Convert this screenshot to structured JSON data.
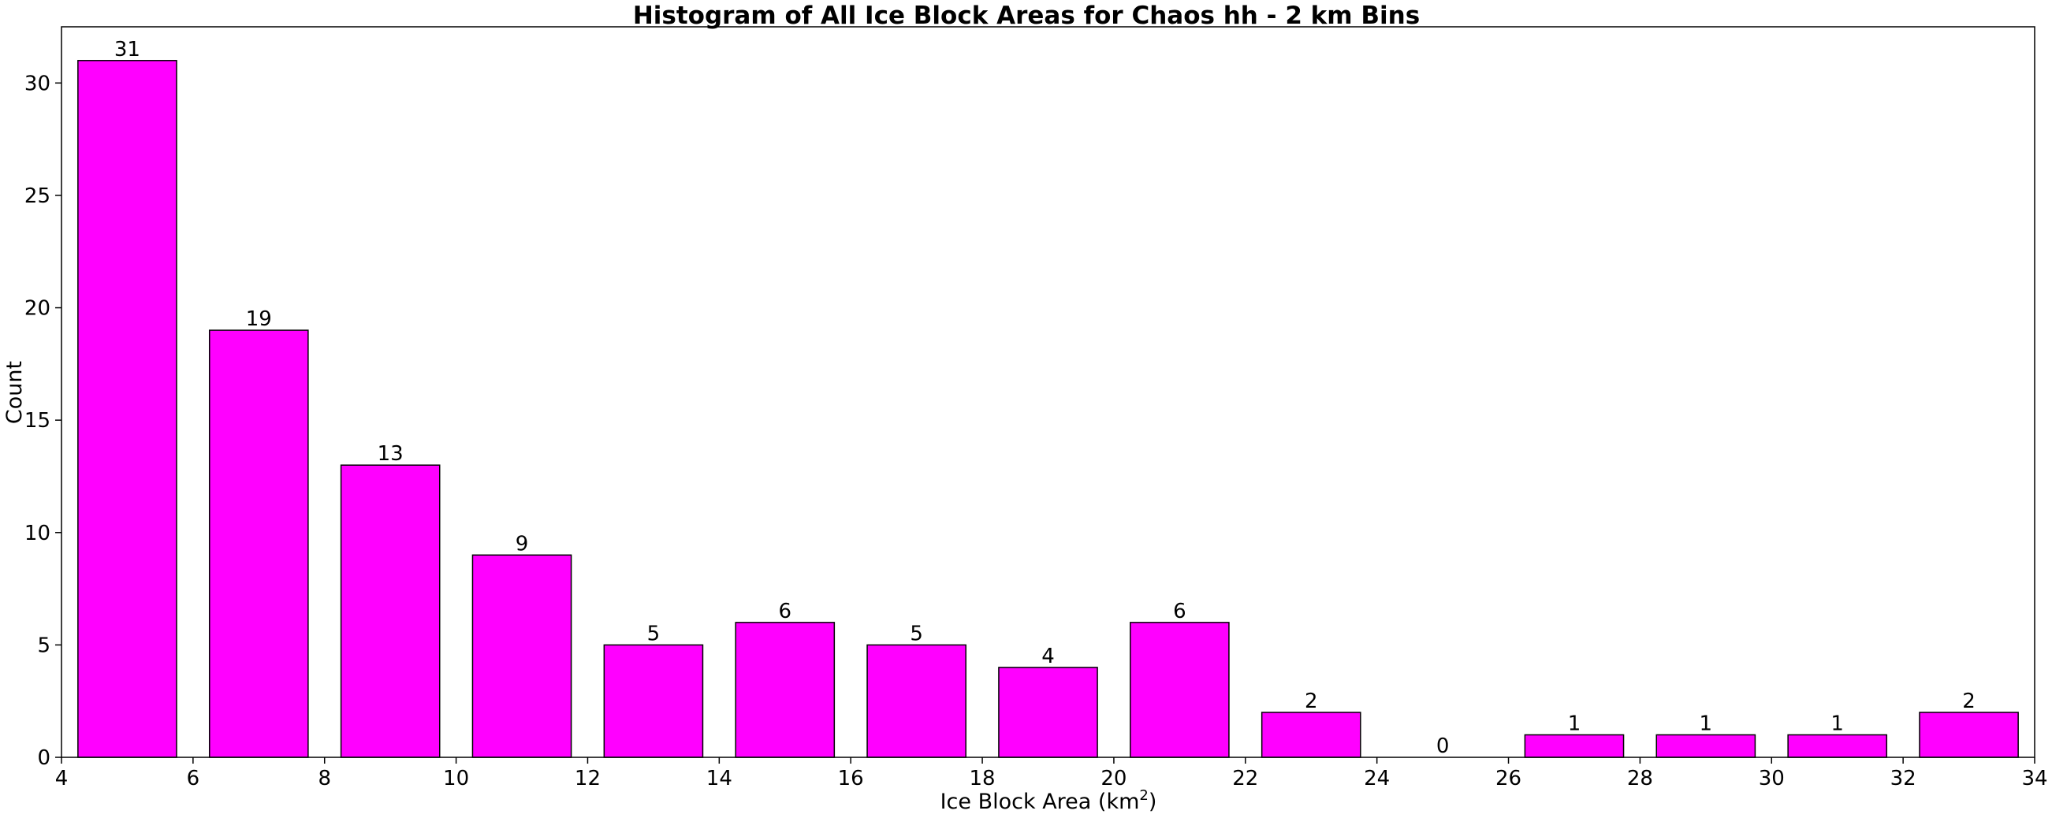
{
  "chart_data": {
    "type": "bar",
    "title": "Histogram of All Ice Block Areas for Chaos hh - 2 km Bins",
    "xlabel_main": "Ice Block Area (km",
    "xlabel_sup": "2",
    "xlabel_close": ")",
    "ylabel": "Count",
    "xlim": [
      4,
      34
    ],
    "ylim": [
      0,
      32.5
    ],
    "xticks": [
      4,
      6,
      8,
      10,
      12,
      14,
      16,
      18,
      20,
      22,
      24,
      26,
      28,
      30,
      32,
      34
    ],
    "yticks": [
      0,
      5,
      10,
      15,
      20,
      25,
      30
    ],
    "bin_width": 2,
    "bar_width": 1.5,
    "bin_centers": [
      5,
      7,
      9,
      11,
      13,
      15,
      17,
      19,
      21,
      23,
      25,
      27,
      29,
      31,
      33
    ],
    "values": [
      31,
      19,
      13,
      9,
      5,
      6,
      5,
      4,
      6,
      2,
      0,
      1,
      1,
      1,
      2
    ],
    "bar_color": "#ff00ff",
    "edge_color": "#000000",
    "grid": false
  }
}
